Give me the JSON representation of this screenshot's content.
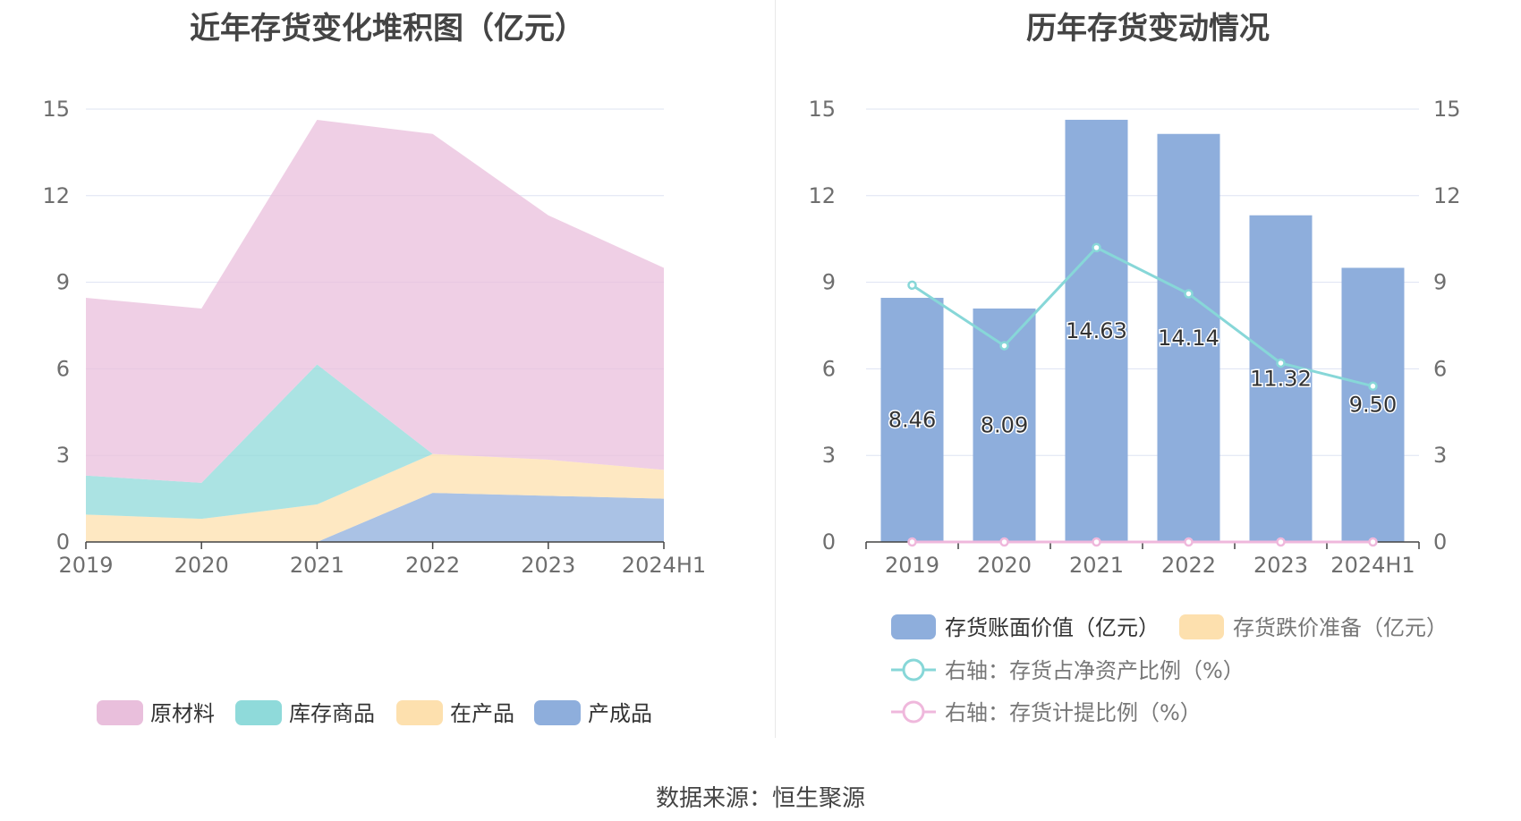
{
  "source": "数据来源：恒生聚源",
  "colors": {
    "raw_materials": "#e9bfdc",
    "goods_in_stock": "#8fdada",
    "wip": "#fde0ae",
    "finished": "#8eaedc",
    "bar_book_value": "#8eaedc",
    "bar_reserve": "#fde0ae",
    "line_ratio": "#87d7d8",
    "line_provision": "#efb8dc",
    "grid": "#dde3f2",
    "axis": "#444444"
  },
  "chart_data": [
    {
      "type": "area",
      "stacked": true,
      "title": "近年存货变化堆积图（亿元）",
      "categories": [
        "2019",
        "2020",
        "2021",
        "2022",
        "2023",
        "2024H1"
      ],
      "y_ticks": [
        "0",
        "3",
        "6",
        "9",
        "12",
        "15"
      ],
      "ylim": [
        0,
        15
      ],
      "series": [
        {
          "key": "finished",
          "name": "产成品",
          "values": [
            0,
            0,
            0,
            1.7,
            1.6,
            1.5
          ]
        },
        {
          "key": "wip",
          "name": "在产品",
          "values": [
            0.95,
            0.8,
            1.3,
            1.35,
            1.25,
            1.0
          ]
        },
        {
          "key": "goods_in_stock",
          "name": "库存商品",
          "values": [
            1.35,
            1.25,
            4.85,
            0,
            0,
            0
          ]
        },
        {
          "key": "raw_materials",
          "name": "原材料",
          "values": [
            6.16,
            6.04,
            8.48,
            11.09,
            8.47,
            7.0
          ]
        }
      ],
      "legend": [
        {
          "key": "raw_materials",
          "label": "原材料"
        },
        {
          "key": "goods_in_stock",
          "label": "库存商品"
        },
        {
          "key": "wip",
          "label": "在产品"
        },
        {
          "key": "finished",
          "label": "产成品"
        }
      ],
      "legend_position": "bottom"
    },
    {
      "type": "bar",
      "title": "历年存货变动情况",
      "categories": [
        "2019",
        "2020",
        "2021",
        "2022",
        "2023",
        "2024H1"
      ],
      "y_ticks_left": [
        "0",
        "3",
        "6",
        "9",
        "12",
        "15"
      ],
      "y_ticks_right": [
        "0",
        "3",
        "6",
        "9",
        "12",
        "15"
      ],
      "ylim": [
        0,
        15
      ],
      "y2lim": [
        0,
        15
      ],
      "bars": {
        "name": "存货账面价值（亿元）",
        "values": [
          8.46,
          8.09,
          14.63,
          14.14,
          11.32,
          9.5
        ],
        "labels": [
          "8.46",
          "8.09",
          "14.63",
          "14.14",
          "11.32",
          "9.50"
        ]
      },
      "bars_reserve": {
        "name": "存货跌价准备（亿元）",
        "values": [
          0,
          0,
          0,
          0,
          0,
          0
        ]
      },
      "lines": [
        {
          "key": "line_ratio",
          "name": "右轴：存货占净资产比例（%）",
          "values": [
            8.9,
            6.8,
            10.2,
            8.6,
            6.2,
            5.4
          ]
        },
        {
          "key": "line_provision",
          "name": "右轴：存货计提比例（%）",
          "values": [
            0,
            0,
            0,
            0,
            0,
            0
          ]
        }
      ],
      "legend_position": "bottom"
    }
  ]
}
